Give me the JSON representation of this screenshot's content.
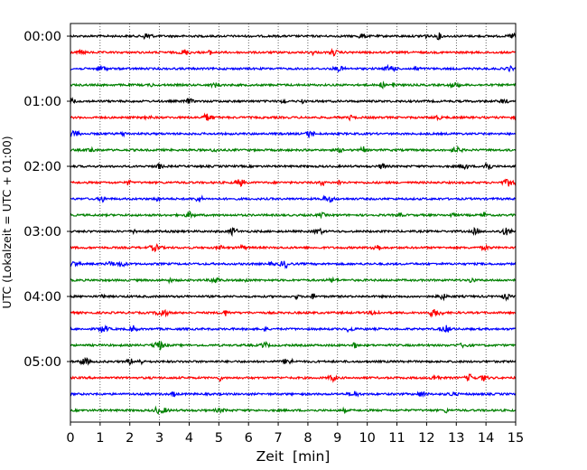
{
  "chart_data": {
    "type": "line",
    "title": "",
    "xlabel": "Zeit  [min]",
    "ylabel": "UTC (Lokalzeit = UTC + 01:00)",
    "xlim": [
      0,
      15
    ],
    "x_ticks": [
      "0",
      "1",
      "2",
      "3",
      "4",
      "5",
      "6",
      "7",
      "8",
      "9",
      "10",
      "11",
      "12",
      "13",
      "14",
      "15"
    ],
    "y_ticks": [
      "00:00",
      "01:00",
      "02:00",
      "03:00",
      "04:00",
      "05:00"
    ],
    "grid": "vertical dotted lines at each minute",
    "trace_interval_minutes": 15,
    "trace_colors": [
      "#000000",
      "#ff0000",
      "#0000ff",
      "#008000"
    ],
    "traces": [
      {
        "start": "00:00",
        "color": "#000000"
      },
      {
        "start": "00:15",
        "color": "#ff0000"
      },
      {
        "start": "00:30",
        "color": "#0000ff"
      },
      {
        "start": "00:45",
        "color": "#008000"
      },
      {
        "start": "01:00",
        "color": "#000000"
      },
      {
        "start": "01:15",
        "color": "#ff0000"
      },
      {
        "start": "01:30",
        "color": "#0000ff"
      },
      {
        "start": "01:45",
        "color": "#008000"
      },
      {
        "start": "02:00",
        "color": "#000000"
      },
      {
        "start": "02:15",
        "color": "#ff0000"
      },
      {
        "start": "02:30",
        "color": "#0000ff"
      },
      {
        "start": "02:45",
        "color": "#008000"
      },
      {
        "start": "03:00",
        "color": "#000000"
      },
      {
        "start": "03:15",
        "color": "#ff0000"
      },
      {
        "start": "03:30",
        "color": "#0000ff"
      },
      {
        "start": "03:45",
        "color": "#008000"
      },
      {
        "start": "04:00",
        "color": "#000000"
      },
      {
        "start": "04:15",
        "color": "#ff0000"
      },
      {
        "start": "04:30",
        "color": "#0000ff"
      },
      {
        "start": "04:45",
        "color": "#008000"
      },
      {
        "start": "05:00",
        "color": "#000000"
      },
      {
        "start": "05:15",
        "color": "#ff0000"
      },
      {
        "start": "05:30",
        "color": "#0000ff"
      },
      {
        "start": "05:45",
        "color": "#008000"
      }
    ]
  }
}
